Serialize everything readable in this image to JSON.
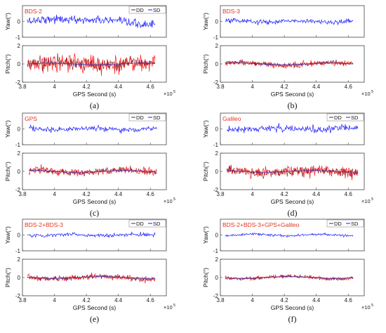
{
  "legend": {
    "dd_label": "DD",
    "sd_label": "SD",
    "dd_color": "#8a1010",
    "sd_color": "#1a1aff"
  },
  "pitch_dd_color": "#8a1010",
  "pitch_sd_color": "#ff1a1a",
  "mean_line_color": "#3333cc",
  "chart_data": [
    {
      "type": "line",
      "caption": "(a)",
      "system_label": "BDS-2",
      "xlabel": "GPS Second (s)",
      "x_exponent_base": "×10",
      "x_exponent": "5",
      "xlim": [
        3.8,
        4.7
      ],
      "xticks": [
        "3.8",
        "4",
        "4.2",
        "4.4",
        "4.6"
      ],
      "x_range": [
        3.83,
        4.63
      ],
      "legend_shown": true,
      "yaw": {
        "ylabel": "Yaw(°)",
        "ylim": [
          -1,
          1
        ],
        "yticks": [
          "0",
          "-1"
        ],
        "noise_std": 0.13
      },
      "pitch": {
        "ylabel": "Pitch(°)",
        "ylim": [
          -2,
          2
        ],
        "yticks": [
          "2",
          "0",
          "-2"
        ],
        "noise_std": 0.45
      }
    },
    {
      "type": "line",
      "caption": "(b)",
      "system_label": "BDS-3",
      "xlabel": "GPS Second (s)",
      "x_exponent_base": "×10",
      "x_exponent": "5",
      "xlim": [
        3.8,
        4.7
      ],
      "xticks": [
        "3.8",
        "4",
        "4.2",
        "4.4",
        "4.6"
      ],
      "x_range": [
        3.83,
        4.63
      ],
      "legend_shown": false,
      "yaw": {
        "ylabel": "Yaw(°)",
        "ylim": [
          -1,
          1
        ],
        "yticks": [
          "0",
          "-1"
        ],
        "noise_std": 0.07
      },
      "pitch": {
        "ylabel": "Pitch(°)",
        "ylim": [
          -2,
          2
        ],
        "yticks": [
          "2",
          "0",
          "-2"
        ],
        "noise_std": 0.15
      }
    },
    {
      "type": "line",
      "caption": "(c)",
      "system_label": "GPS",
      "xlabel": "GPS Second (s)",
      "x_exponent_base": "×10",
      "x_exponent": "5",
      "xlim": [
        3.8,
        4.7
      ],
      "xticks": [
        "3.8",
        "4",
        "4.2",
        "4.4",
        "4.6"
      ],
      "x_range": [
        3.84,
        4.64
      ],
      "legend_shown": true,
      "yaw": {
        "ylabel": "Yaw(°)",
        "ylim": [
          -1,
          1
        ],
        "yticks": [
          "0",
          "-1"
        ],
        "noise_std": 0.08
      },
      "pitch": {
        "ylabel": "Pitch(°)",
        "ylim": [
          -2,
          2
        ],
        "yticks": [
          "2",
          "0",
          "-2"
        ],
        "noise_std": 0.2
      }
    },
    {
      "type": "line",
      "caption": "(d)",
      "system_label": "Galileo",
      "xlabel": "GPS Second (s)",
      "x_exponent_base": "×10",
      "x_exponent": "5",
      "xlim": [
        3.8,
        4.7
      ],
      "xticks": [
        "3.8",
        "4",
        "4.2",
        "4.4",
        "4.6"
      ],
      "x_range": [
        3.84,
        4.66
      ],
      "legend_shown": true,
      "yaw": {
        "ylabel": "Yaw(°)",
        "ylim": [
          -1,
          1
        ],
        "yticks": [
          "0",
          "-1"
        ],
        "noise_std": 0.11
      },
      "pitch": {
        "ylabel": "Pitch(°)",
        "ylim": [
          -2,
          2
        ],
        "yticks": [
          "2",
          "0",
          "-2"
        ],
        "noise_std": 0.28
      }
    },
    {
      "type": "line",
      "caption": "(e)",
      "system_label": "BDS-2+BDS-3",
      "xlabel": "GPS Second (s)",
      "x_exponent_base": "×10",
      "x_exponent": "5",
      "xlim": [
        3.8,
        4.7
      ],
      "xticks": [
        "3.8",
        "4",
        "4.2",
        "4.4",
        "4.6"
      ],
      "x_range": [
        3.83,
        4.63
      ],
      "legend_shown": true,
      "yaw": {
        "ylabel": "Yaw(°)",
        "ylim": [
          -1,
          1
        ],
        "yticks": [
          "0",
          "-1"
        ],
        "noise_std": 0.06
      },
      "pitch": {
        "ylabel": "Pitch(°)",
        "ylim": [
          -2,
          2
        ],
        "yticks": [
          "2",
          "0",
          "-2"
        ],
        "noise_std": 0.14
      }
    },
    {
      "type": "line",
      "caption": "(f)",
      "system_label": "BDS-2+BDS-3+GPS+Galileo",
      "xlabel": "GPS Second (s)",
      "x_exponent_base": "×10",
      "x_exponent": "5",
      "xlim": [
        3.8,
        4.7
      ],
      "xticks": [
        "3.8",
        "4",
        "4.2",
        "4.4",
        "4.6"
      ],
      "x_range": [
        3.83,
        4.63
      ],
      "legend_shown": true,
      "yaw": {
        "ylabel": "Yaw(°)",
        "ylim": [
          -1,
          1
        ],
        "yticks": [
          "0",
          "-1"
        ],
        "noise_std": 0.04
      },
      "pitch": {
        "ylabel": "Pitch(°)",
        "ylim": [
          -2,
          2
        ],
        "yticks": [
          "2",
          "0",
          "-2"
        ],
        "noise_std": 0.09
      }
    }
  ]
}
